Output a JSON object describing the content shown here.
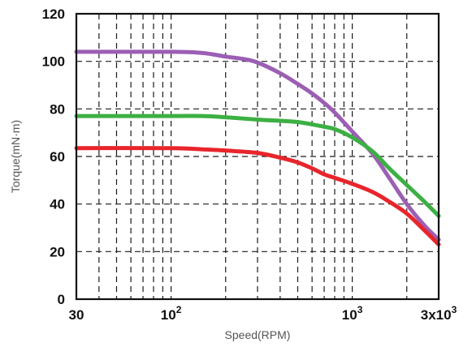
{
  "chart_data": {
    "type": "line",
    "xlabel": "Speed(RPM)",
    "ylabel": "Torque(mN·m)",
    "xscale": "log",
    "xlim": [
      30,
      3000
    ],
    "ylim": [
      0,
      120
    ],
    "grid": true,
    "x_ticks": [
      {
        "value": 30,
        "label": "30",
        "sup": ""
      },
      {
        "value": 100,
        "label": "10",
        "sup": "2"
      },
      {
        "value": 1000,
        "label": "10",
        "sup": "3"
      },
      {
        "value": 3000,
        "label": "3x10",
        "sup": "3"
      }
    ],
    "y_ticks": [
      0,
      20,
      40,
      60,
      80,
      100,
      120
    ],
    "x_minor_gridlines": [
      40,
      50,
      60,
      70,
      80,
      90,
      200,
      300,
      400,
      500,
      600,
      700,
      800,
      900,
      2000
    ],
    "series": [
      {
        "color": "#9b5fb4",
        "x": [
          30,
          100,
          150,
          200,
          250,
          300,
          400,
          500,
          600,
          700,
          800,
          1000,
          1300,
          1600,
          2000,
          2500,
          3000
        ],
        "y": [
          104,
          104,
          103.5,
          102,
          101,
          99.5,
          95,
          90.5,
          86.5,
          82.5,
          78.5,
          70.5,
          61,
          51,
          40,
          31,
          25
        ]
      },
      {
        "color": "#3cb043",
        "x": [
          30,
          100,
          150,
          200,
          300,
          400,
          500,
          600,
          700,
          800,
          1000,
          1300,
          1600,
          2000,
          2500,
          3000
        ],
        "y": [
          77,
          77,
          77,
          76.5,
          75.5,
          75,
          74.5,
          73.5,
          72.5,
          71.5,
          68,
          62,
          55,
          48,
          41,
          35
        ]
      },
      {
        "color": "#e8252b",
        "x": [
          30,
          100,
          150,
          200,
          300,
          400,
          500,
          600,
          700,
          800,
          1000,
          1300,
          1600,
          2000,
          2500,
          3000
        ],
        "y": [
          63.5,
          63.5,
          63,
          62.5,
          61.5,
          59.5,
          57.5,
          55,
          52.5,
          51,
          48.5,
          45,
          41,
          36,
          29,
          23
        ]
      }
    ]
  }
}
